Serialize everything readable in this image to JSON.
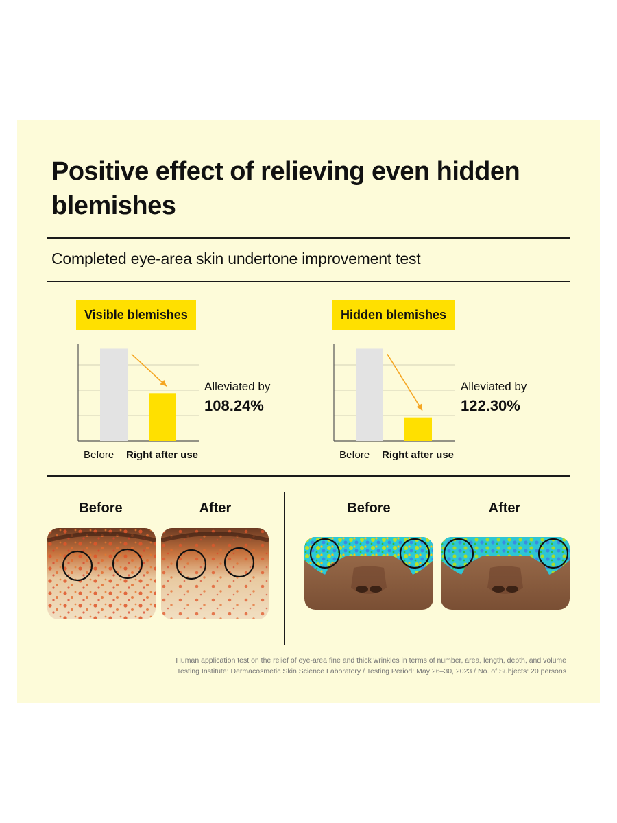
{
  "title": "Positive effect of relieving even hidden blemishes",
  "subtitle": "Completed eye-area skin undertone improvement test",
  "colors": {
    "panel": "#fdfbd9",
    "accent": "#ffe000",
    "before_bar": "#e3e3e3",
    "arrow": "#f5a623",
    "line": "#1a1a1a"
  },
  "chart_data": [
    {
      "type": "bar",
      "title": "Visible blemishes",
      "categories": [
        "Before",
        "Right after use"
      ],
      "values": [
        100,
        51.8
      ],
      "ylim": [
        0,
        110
      ],
      "grid": true,
      "annotation": {
        "label": "Alleviated by",
        "value": "108.24%"
      }
    },
    {
      "type": "bar",
      "title": "Hidden blemishes",
      "categories": [
        "Before",
        "Right after use"
      ],
      "values": [
        100,
        25.5
      ],
      "ylim": [
        0,
        110
      ],
      "grid": true,
      "annotation": {
        "label": "Alleviated by",
        "value": "122.30%"
      }
    }
  ],
  "photos": {
    "left": {
      "before_label": "Before",
      "after_label": "After"
    },
    "right": {
      "before_label": "Before",
      "after_label": "After"
    }
  },
  "footnote": {
    "line1": "Human application test on the relief of eye-area fine and thick wrinkles in terms of number, area, length, depth, and volume",
    "line2": "Testing Institute: Dermacosmetic Skin Science Laboratory / Testing Period: May 26–30, 2023 / No. of Subjects: 20 persons"
  }
}
